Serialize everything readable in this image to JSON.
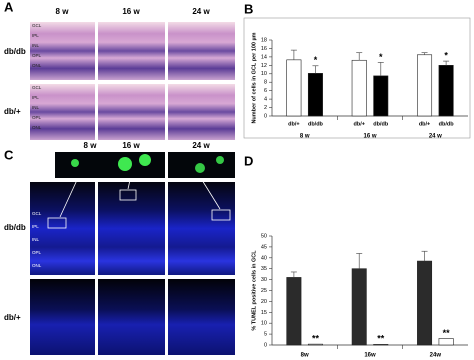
{
  "panel_a": {
    "label": "A",
    "columns": [
      "8 w",
      "16 w",
      "24 w"
    ],
    "rows": [
      "db/db",
      "db/+"
    ],
    "layers": [
      "GCL",
      "IPL",
      "INL",
      "OPL",
      "ONL"
    ]
  },
  "panel_c": {
    "label": "C",
    "columns": [
      "8 w",
      "16 w",
      "24 w"
    ],
    "rows": [
      "db/db",
      "db/+"
    ],
    "layers": [
      "GCL",
      "IPL",
      "INL",
      "OPL",
      "ONL"
    ]
  },
  "chart_data": [
    {
      "type": "bar",
      "label": "B",
      "y_label": "Number of cells in GCL per 100 µm",
      "groups": [
        "8 w",
        "16 w",
        "24 w"
      ],
      "ylim": [
        0,
        18
      ],
      "yticks": [
        0,
        2,
        4,
        6,
        8,
        10,
        12,
        14,
        16,
        18
      ],
      "frame": true,
      "series": [
        {
          "name": "db/+",
          "color": "#ffffff",
          "values": [
            13.3,
            13.2,
            14.5
          ],
          "errors": [
            2.3,
            1.8,
            0.5
          ]
        },
        {
          "name": "db/db",
          "color": "#000000",
          "values": [
            10.1,
            9.5,
            12.0
          ],
          "errors": [
            1.8,
            3.2,
            1.0
          ],
          "markers": [
            "*",
            "*",
            "*"
          ]
        }
      ]
    },
    {
      "type": "bar",
      "label": "D",
      "y_label": "% TUNEL positive cells in GCL",
      "groups": [
        "8w",
        "16w",
        "24w"
      ],
      "ylim": [
        0,
        50
      ],
      "yticks": [
        0,
        5,
        10,
        15,
        20,
        25,
        30,
        35,
        40,
        45,
        50
      ],
      "frame": false,
      "series": [
        {
          "color": "#2b2b2b",
          "values": [
            31,
            35,
            38.5
          ],
          "errors": [
            2.5,
            7,
            4.5
          ]
        },
        {
          "color": "#ffffff",
          "values": [
            0.4,
            0.3,
            3
          ],
          "errors": [
            0,
            0,
            0
          ],
          "markers": [
            "**",
            "**",
            "**"
          ]
        }
      ]
    }
  ]
}
